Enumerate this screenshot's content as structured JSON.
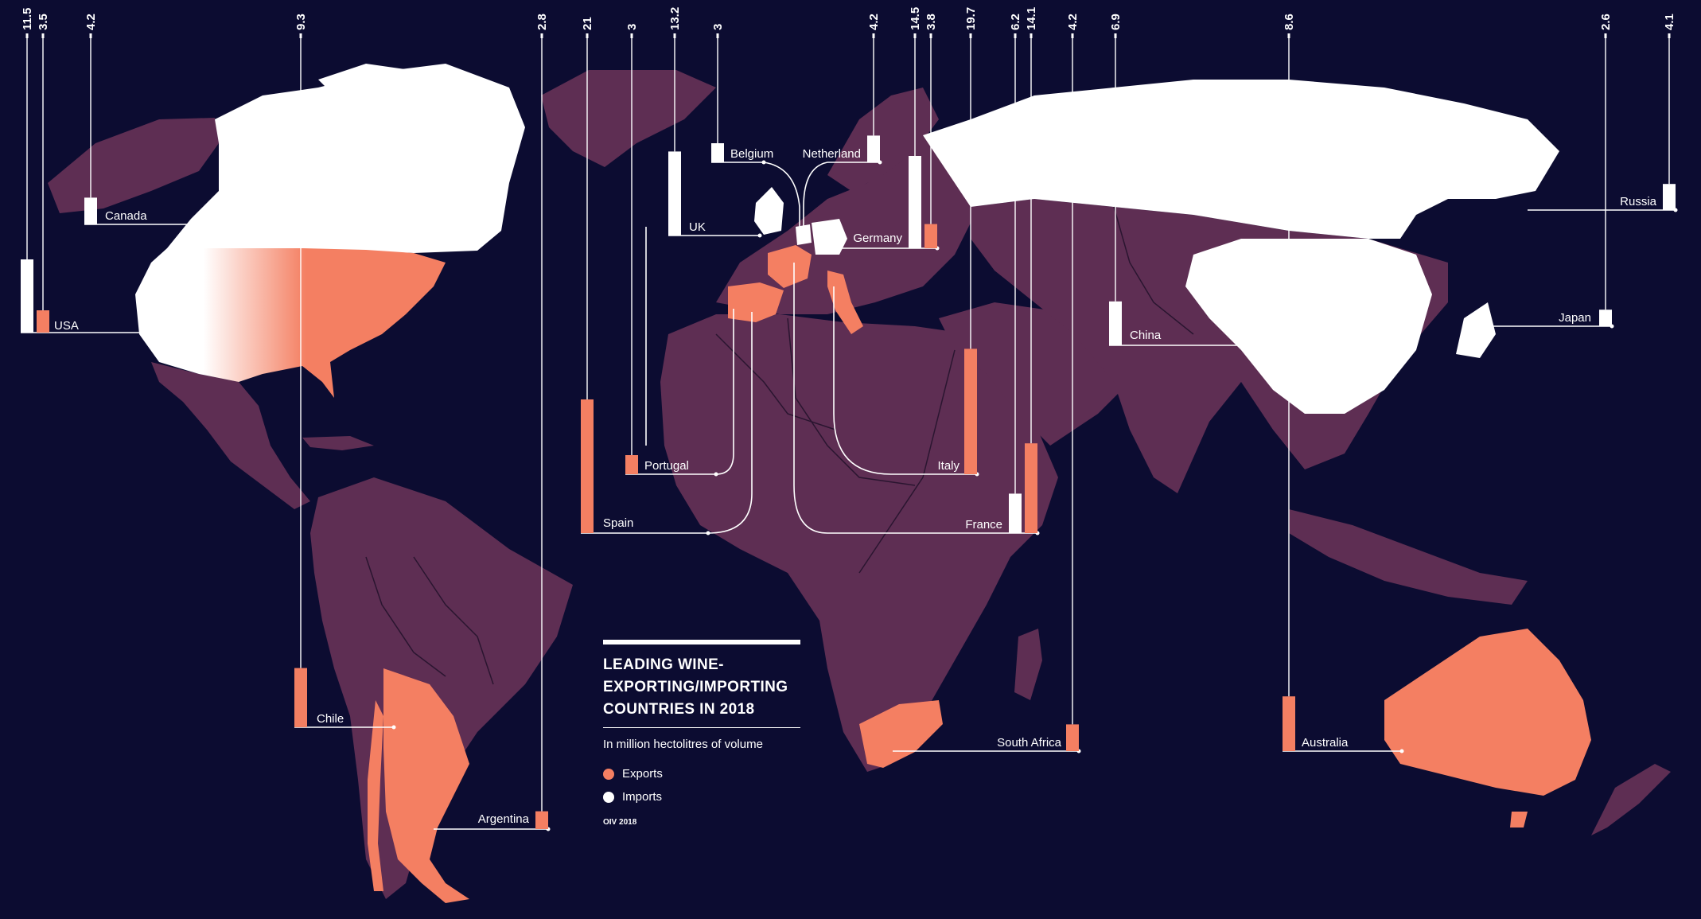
{
  "colors": {
    "background": "#0c0c31",
    "land": "#5e2e53",
    "exports": "#f47f62",
    "imports": "#ffffff",
    "border": "#2a1530"
  },
  "legend": {
    "title_lines": [
      "LEADING WINE-",
      "EXPORTING/IMPORTING",
      "COUNTRIES IN 2018"
    ],
    "subtitle": "In million hectolitres of volume",
    "exports_label": "Exports",
    "imports_label": "Imports",
    "source": "OIV 2018"
  },
  "countries": [
    {
      "name": "USA",
      "bars": [
        {
          "type": "imports",
          "value": "11.5"
        },
        {
          "type": "exports",
          "value": "3.5"
        }
      ]
    },
    {
      "name": "Canada",
      "bars": [
        {
          "type": "imports",
          "value": "4.2"
        }
      ]
    },
    {
      "name": "Chile",
      "bars": [
        {
          "type": "exports",
          "value": "9.3"
        }
      ]
    },
    {
      "name": "Argentina",
      "bars": [
        {
          "type": "exports",
          "value": "2.8"
        }
      ]
    },
    {
      "name": "Spain",
      "bars": [
        {
          "type": "exports",
          "value": "21"
        }
      ]
    },
    {
      "name": "Portugal",
      "bars": [
        {
          "type": "exports",
          "value": "3"
        }
      ]
    },
    {
      "name": "UK",
      "bars": [
        {
          "type": "imports",
          "value": "13.2"
        }
      ]
    },
    {
      "name": "Belgium",
      "bars": [
        {
          "type": "imports",
          "value": "3"
        }
      ]
    },
    {
      "name": "Netherland",
      "bars": [
        {
          "type": "imports",
          "value": "4.2"
        }
      ]
    },
    {
      "name": "Germany",
      "bars": [
        {
          "type": "imports",
          "value": "14.5"
        },
        {
          "type": "exports",
          "value": "3.8"
        }
      ]
    },
    {
      "name": "Italy",
      "bars": [
        {
          "type": "exports",
          "value": "19.7"
        }
      ]
    },
    {
      "name": "France",
      "bars": [
        {
          "type": "imports",
          "value": "6.2"
        },
        {
          "type": "exports",
          "value": "14.1"
        }
      ]
    },
    {
      "name": "South Africa",
      "bars": [
        {
          "type": "exports",
          "value": "4.2"
        }
      ]
    },
    {
      "name": "China",
      "bars": [
        {
          "type": "imports",
          "value": "6.9"
        }
      ]
    },
    {
      "name": "Australia",
      "bars": [
        {
          "type": "exports",
          "value": "8.6"
        }
      ]
    },
    {
      "name": "Japan",
      "bars": [
        {
          "type": "imports",
          "value": "2.6"
        }
      ]
    },
    {
      "name": "Russia",
      "bars": [
        {
          "type": "imports",
          "value": "4.1"
        }
      ]
    }
  ]
}
